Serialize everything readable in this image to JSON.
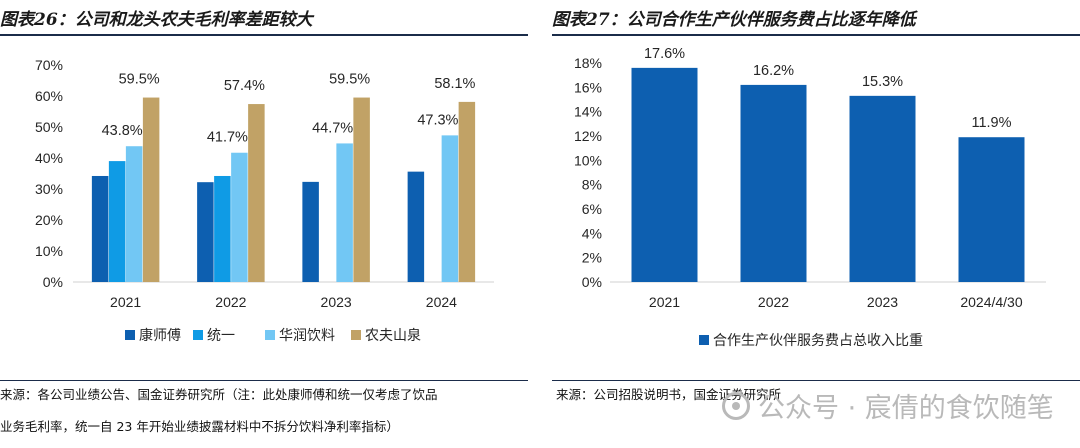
{
  "left_panel": {
    "title": "图表26：公司和龙头农夫毛利率差距较大",
    "source_line1": "来源：各公司业绩公告、国金证券研究所（注：此处康师傅和统一仅考虑了饮品",
    "source_line2": "业务毛利率，统一自 23 年开始业绩披露材料中不拆分饮料净利率指标）"
  },
  "right_panel": {
    "title": "图表27：公司合作生产伙伴服务费占比逐年降低",
    "source_line1": "来源：公司招股说明书，国金证券研究所"
  },
  "watermark": "公众号 · 宸倩的食饮随笔",
  "chart_data": [
    {
      "type": "bar",
      "categories": [
        "2021",
        "2022",
        "2023",
        "2024"
      ],
      "series": [
        {
          "name": "康师傅",
          "color": "#0d5fb0",
          "values": [
            34.2,
            32.2,
            32.3,
            35.6
          ]
        },
        {
          "name": "统一",
          "color": "#0f9be5",
          "values": [
            39.0,
            34.2,
            null,
            null
          ]
        },
        {
          "name": "华润饮料",
          "color": "#72c7f4",
          "values": [
            43.8,
            41.7,
            44.7,
            47.3
          ]
        },
        {
          "name": "农夫山泉",
          "color": "#c1a266",
          "values": [
            59.5,
            57.4,
            59.5,
            58.1
          ]
        }
      ],
      "data_labels": [
        {
          "series": "华润饮料",
          "category": "2021",
          "text": "43.8%"
        },
        {
          "series": "农夫山泉",
          "category": "2021",
          "text": "59.5%"
        },
        {
          "series": "华润饮料",
          "category": "2022",
          "text": "41.7%"
        },
        {
          "series": "农夫山泉",
          "category": "2022",
          "text": "57.4%"
        },
        {
          "series": "华润饮料",
          "category": "2023",
          "text": "44.7%"
        },
        {
          "series": "农夫山泉",
          "category": "2023",
          "text": "59.5%"
        },
        {
          "series": "华润饮料",
          "category": "2024",
          "text": "47.3%"
        },
        {
          "series": "农夫山泉",
          "category": "2024",
          "text": "58.1%"
        }
      ],
      "y_ticks": [
        "0%",
        "10%",
        "20%",
        "30%",
        "40%",
        "50%",
        "60%",
        "70%"
      ],
      "ylim": [
        0,
        70
      ],
      "grid": false,
      "legend_position": "bottom"
    },
    {
      "type": "bar",
      "categories": [
        "2021",
        "2022",
        "2023",
        "2024/4/30"
      ],
      "series": [
        {
          "name": "合作生产伙伴服务费占总收入比重",
          "color": "#0d5fb0",
          "values": [
            17.6,
            16.2,
            15.3,
            11.9
          ]
        }
      ],
      "data_labels": [
        "17.6%",
        "16.2%",
        "15.3%",
        "11.9%"
      ],
      "y_ticks": [
        "0%",
        "2%",
        "4%",
        "6%",
        "8%",
        "10%",
        "12%",
        "14%",
        "16%",
        "18%"
      ],
      "ylim": [
        0,
        18
      ],
      "grid": false,
      "legend_position": "bottom"
    }
  ]
}
